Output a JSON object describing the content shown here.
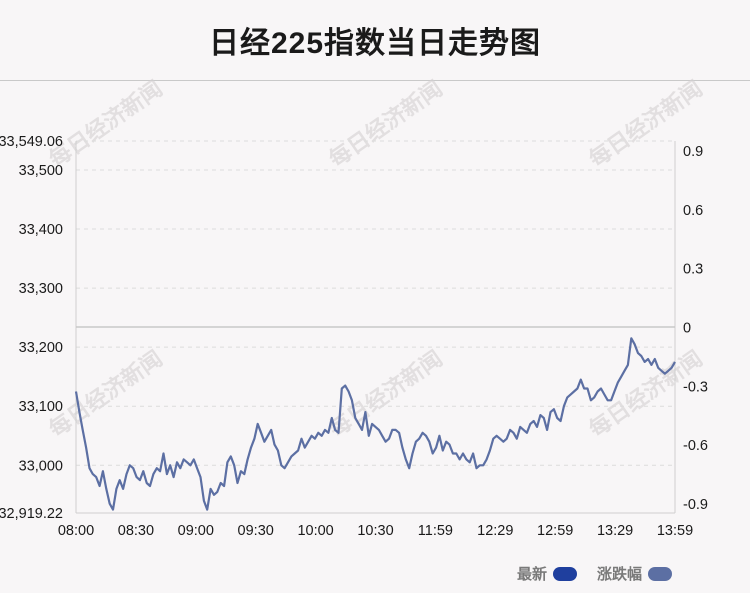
{
  "title": "日经225指数当日走势图",
  "chart_data": {
    "type": "line",
    "title": "日经225指数当日走势图",
    "x_ticks": [
      "08:00",
      "08:30",
      "09:00",
      "09:30",
      "10:00",
      "10:30",
      "11:59",
      "12:29",
      "12:59",
      "13:29",
      "13:59"
    ],
    "y_left": {
      "min": 32919.22,
      "max": 33549.06,
      "ticks": [
        "33,549.06",
        "33,500",
        "33,400",
        "33,300",
        "33,200",
        "33,100",
        "33,000",
        "32,919.22"
      ],
      "tick_values": [
        33549.06,
        33500,
        33400,
        33300,
        33200,
        33100,
        33000,
        32919.22
      ]
    },
    "y_right": {
      "ticks": [
        "0.9",
        "0.6",
        "0.3",
        "0",
        "-0.3",
        "-0.6",
        "-0.9"
      ],
      "tick_values": [
        0.9,
        0.6,
        0.3,
        0,
        -0.3,
        -0.6,
        -0.9
      ]
    },
    "reference_line": 33234.14,
    "grid": true,
    "series": [
      {
        "name": "最新",
        "color": "#1f3f9e"
      },
      {
        "name": "涨跌幅",
        "color": "#5c6fa3",
        "values": [
          33125,
          33090,
          33060,
          33030,
          32995,
          32985,
          32980,
          32965,
          32990,
          32960,
          32935,
          32925,
          32960,
          32975,
          32960,
          32985,
          33000,
          32995,
          32980,
          32975,
          32990,
          32970,
          32965,
          32985,
          32995,
          32990,
          33020,
          32985,
          33000,
          32980,
          33005,
          32995,
          33010,
          33005,
          33000,
          33010,
          32995,
          32980,
          32940,
          32925,
          32960,
          32950,
          32955,
          32970,
          32965,
          33005,
          33015,
          33000,
          32970,
          32990,
          32985,
          33010,
          33030,
          33045,
          33070,
          33055,
          33040,
          33050,
          33060,
          33035,
          33025,
          33000,
          32995,
          33005,
          33015,
          33020,
          33025,
          33045,
          33030,
          33040,
          33050,
          33045,
          33055,
          33050,
          33060,
          33055,
          33080,
          33060,
          33055,
          33130,
          33135,
          33125,
          33110,
          33080,
          33070,
          33060,
          33090,
          33050,
          33070,
          33065,
          33060,
          33050,
          33040,
          33045,
          33060,
          33060,
          33055,
          33030,
          33010,
          32995,
          33020,
          33040,
          33045,
          33055,
          33050,
          33040,
          33020,
          33030,
          33050,
          33025,
          33040,
          33035,
          33020,
          33020,
          33010,
          33020,
          33010,
          33005,
          33020,
          32995,
          33000,
          33000,
          33010,
          33025,
          33045,
          33050,
          33045,
          33040,
          33045,
          33060,
          33055,
          33045,
          33065,
          33060,
          33055,
          33070,
          33075,
          33065,
          33085,
          33080,
          33060,
          33090,
          33095,
          33080,
          33075,
          33100,
          33115,
          33120,
          33125,
          33130,
          33145,
          33130,
          33130,
          33110,
          33115,
          33125,
          33130,
          33120,
          33110,
          33110,
          33125,
          33140,
          33150,
          33160,
          33170,
          33215,
          33205,
          33190,
          33185,
          33175,
          33180,
          33170,
          33180,
          33165,
          33160,
          33155,
          33160,
          33165,
          33175
        ]
      }
    ],
    "legend": [
      "最新",
      "涨跌幅"
    ],
    "legend_position": "bottom-right",
    "watermark": "每日经济新闻"
  }
}
